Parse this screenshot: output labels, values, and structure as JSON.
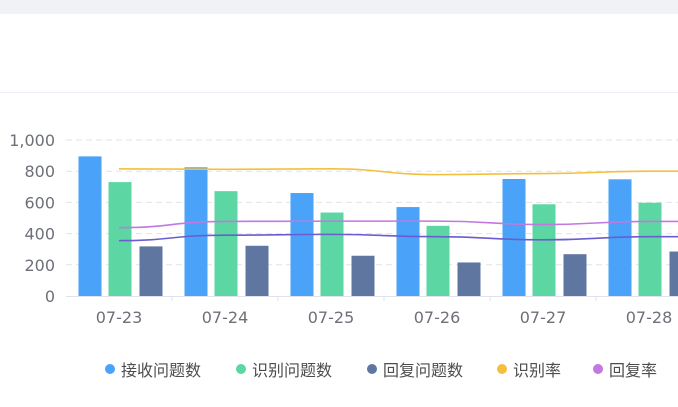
{
  "chart_data": {
    "type": "bar",
    "categories": [
      "07-23",
      "07-24",
      "07-25",
      "07-26",
      "07-27",
      "07-28"
    ],
    "ylim": [
      0,
      1000
    ],
    "yticks": [
      "0",
      "200",
      "400",
      "600",
      "800",
      "1,000"
    ],
    "grid": true,
    "legend_position": "bottom",
    "series": [
      {
        "name": "接收问题数",
        "kind": "bar",
        "color": "#4aa3f8",
        "values": [
          895,
          825,
          660,
          570,
          750,
          748
        ]
      },
      {
        "name": "识别问题数",
        "kind": "bar",
        "color": "#5cd6a2",
        "values": [
          730,
          672,
          535,
          450,
          588,
          598
        ]
      },
      {
        "name": "回复问题数",
        "kind": "bar",
        "color": "#5f77a0",
        "values": [
          318,
          322,
          258,
          215,
          268,
          285
        ]
      },
      {
        "name": "识别率",
        "kind": "line",
        "color": "#f5bf3e",
        "values": [
          815,
          812,
          815,
          778,
          785,
          800
        ]
      },
      {
        "name": "回复率",
        "kind": "line",
        "color": "#c178e0",
        "values": [
          438,
          478,
          480,
          480,
          458,
          478
        ]
      }
    ],
    "extra_lines": [
      {
        "kind": "line",
        "color": "#6b5ccf",
        "values": [
          355,
          390,
          395,
          380,
          360,
          380
        ]
      }
    ]
  }
}
